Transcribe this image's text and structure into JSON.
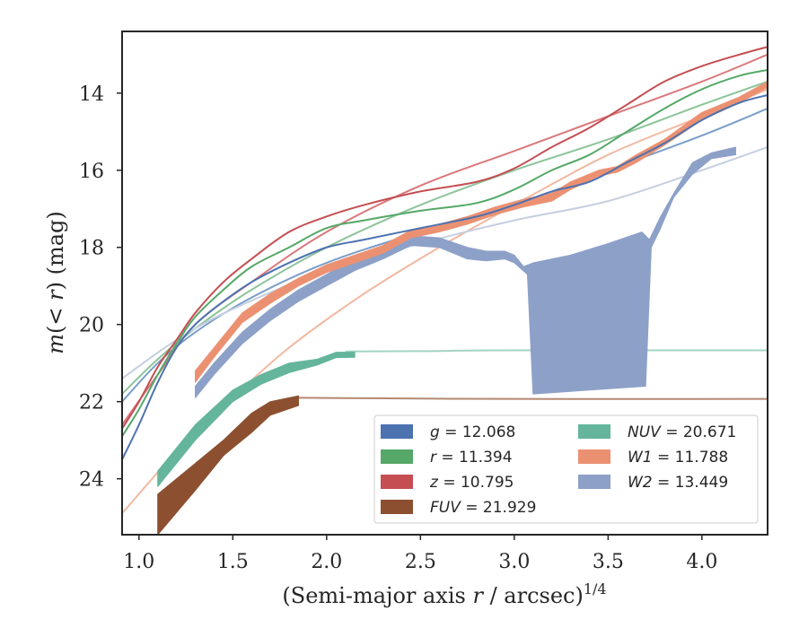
{
  "chart_data": {
    "type": "line",
    "xlabel": "(Semi-major axis r / arcsec)",
    "xlabel_parts": {
      "pre": "(Semi-major axis ",
      "var": "r",
      "post": " / arcsec)",
      "sup": "1/4"
    },
    "ylabel": "m(< r) (mag)",
    "ylabel_parts": {
      "m": "m",
      "open": "(",
      "lt": "< ",
      "r": "r",
      "close": ")",
      "unit": " (mag)"
    },
    "xlim": [
      0.91,
      4.35
    ],
    "ylim": [
      25.45,
      12.4
    ],
    "y_inverted": true,
    "x_ticks": [
      "1.0",
      "1.5",
      "2.0",
      "2.5",
      "3.0",
      "3.5",
      "4.0"
    ],
    "x_tick_values": [
      1.0,
      1.5,
      2.0,
      2.5,
      3.0,
      3.5,
      4.0
    ],
    "y_ticks": [
      "14",
      "16",
      "18",
      "20",
      "22",
      "24"
    ],
    "y_tick_values": [
      14,
      16,
      18,
      20,
      22,
      24
    ],
    "grid": false,
    "legend_placement": "lower-right",
    "legend": [
      {
        "label": "g = 12.068",
        "var": "g",
        "value": "12.068",
        "color": "#4c72b0"
      },
      {
        "label": "r = 11.394",
        "var": "r",
        "value": "11.394",
        "color": "#55a868"
      },
      {
        "label": "z = 10.795",
        "var": "z",
        "value": "10.795",
        "color": "#c44e52"
      },
      {
        "label": "FUV = 21.929",
        "var": "FUV",
        "value": "21.929",
        "color": "#8c5030"
      },
      {
        "label": "NUV = 20.671",
        "var": "NUV",
        "value": "20.671",
        "color": "#64b59b"
      },
      {
        "label": "W1 = 11.788",
        "var": "W1",
        "value": "11.788",
        "color": "#eb9172"
      },
      {
        "label": "W2 = 13.449",
        "var": "W2",
        "value": "13.449",
        "color": "#8da0c8"
      }
    ],
    "models": [
      {
        "band": "g",
        "color": "#7a9ec8",
        "points": [
          [
            0.91,
            22.0
          ],
          [
            1.1,
            21.0
          ],
          [
            1.3,
            20.2
          ],
          [
            1.6,
            19.3
          ],
          [
            2.0,
            18.4
          ],
          [
            2.5,
            17.6
          ],
          [
            3.0,
            16.9
          ],
          [
            3.5,
            16.0
          ],
          [
            4.0,
            15.1
          ],
          [
            4.35,
            14.4
          ]
        ]
      },
      {
        "band": "r",
        "color": "#8cc49a",
        "points": [
          [
            0.91,
            21.8
          ],
          [
            1.1,
            20.9
          ],
          [
            1.3,
            20.1
          ],
          [
            1.6,
            19.1
          ],
          [
            2.0,
            18.0
          ],
          [
            2.5,
            16.9
          ],
          [
            3.0,
            16.0
          ],
          [
            3.5,
            15.2
          ],
          [
            4.0,
            14.3
          ],
          [
            4.35,
            13.7
          ]
        ]
      },
      {
        "band": "z",
        "color": "#d9787b",
        "points": [
          [
            0.91,
            22.6
          ],
          [
            1.1,
            21.3
          ],
          [
            1.3,
            20.0
          ],
          [
            1.6,
            18.9
          ],
          [
            2.0,
            17.6
          ],
          [
            2.5,
            16.4
          ],
          [
            3.0,
            15.5
          ],
          [
            3.5,
            14.6
          ],
          [
            4.0,
            13.7
          ],
          [
            4.35,
            13.0
          ]
        ]
      },
      {
        "band": "FUV",
        "color": "#b58872",
        "points": [
          [
            1.85,
            21.9
          ],
          [
            2.5,
            21.92
          ],
          [
            3.0,
            21.93
          ],
          [
            4.35,
            21.93
          ]
        ]
      },
      {
        "band": "NUV",
        "color": "#a3d3c1",
        "points": [
          [
            2.1,
            20.7
          ],
          [
            2.5,
            20.69
          ],
          [
            3.0,
            20.67
          ],
          [
            4.35,
            20.67
          ]
        ]
      },
      {
        "band": "W1",
        "color": "#f2b8a0",
        "points": [
          [
            0.91,
            24.9
          ],
          [
            1.2,
            23.3
          ],
          [
            1.5,
            21.9
          ],
          [
            1.8,
            20.6
          ],
          [
            2.2,
            19.2
          ],
          [
            2.6,
            18.0
          ],
          [
            3.0,
            16.9
          ],
          [
            3.5,
            15.6
          ],
          [
            4.0,
            14.6
          ],
          [
            4.35,
            13.9
          ]
        ]
      },
      {
        "band": "W2",
        "color": "#c5cfe1",
        "points": [
          [
            0.91,
            21.4
          ],
          [
            1.2,
            20.4
          ],
          [
            1.5,
            19.6
          ],
          [
            2.0,
            18.6
          ],
          [
            2.5,
            17.9
          ],
          [
            3.0,
            17.3
          ],
          [
            3.5,
            16.8
          ],
          [
            4.0,
            16.0
          ],
          [
            4.35,
            15.4
          ]
        ]
      }
    ],
    "observed": [
      {
        "band": "W2",
        "color": "#8da0c8",
        "band_type": "filled",
        "upper": [
          [
            1.3,
            21.6
          ],
          [
            1.4,
            21.0
          ],
          [
            1.55,
            20.2
          ],
          [
            1.7,
            19.6
          ],
          [
            1.85,
            19.1
          ],
          [
            2.0,
            18.7
          ],
          [
            2.15,
            18.3
          ],
          [
            2.3,
            18.0
          ],
          [
            2.45,
            17.7
          ],
          [
            2.6,
            17.75
          ],
          [
            2.75,
            18.0
          ],
          [
            2.85,
            18.1
          ],
          [
            2.95,
            18.1
          ],
          [
            3.0,
            18.2
          ],
          [
            3.05,
            18.5
          ],
          [
            3.1,
            18.4
          ],
          [
            3.3,
            18.2
          ],
          [
            3.5,
            17.9
          ],
          [
            3.68,
            17.6
          ],
          [
            3.72,
            17.8
          ],
          [
            3.78,
            17.2
          ],
          [
            3.85,
            16.6
          ],
          [
            3.95,
            15.8
          ],
          [
            4.05,
            15.55
          ],
          [
            4.18,
            15.4
          ]
        ],
        "lower": [
          [
            4.18,
            15.6
          ],
          [
            4.05,
            15.7
          ],
          [
            3.95,
            16.1
          ],
          [
            3.85,
            16.7
          ],
          [
            3.78,
            17.5
          ],
          [
            3.73,
            18.0
          ],
          [
            3.7,
            21.6
          ],
          [
            3.1,
            21.8
          ],
          [
            3.07,
            18.7
          ],
          [
            3.0,
            18.4
          ],
          [
            2.95,
            18.3
          ],
          [
            2.85,
            18.35
          ],
          [
            2.75,
            18.3
          ],
          [
            2.6,
            18.0
          ],
          [
            2.45,
            17.95
          ],
          [
            2.3,
            18.3
          ],
          [
            2.15,
            18.6
          ],
          [
            2.0,
            19.0
          ],
          [
            1.85,
            19.4
          ],
          [
            1.7,
            19.9
          ],
          [
            1.55,
            20.5
          ],
          [
            1.4,
            21.3
          ],
          [
            1.3,
            21.9
          ]
        ]
      },
      {
        "band": "FUV",
        "color": "#8c5030",
        "band_type": "filled",
        "upper": [
          [
            1.1,
            24.4
          ],
          [
            1.3,
            23.6
          ],
          [
            1.45,
            23.0
          ],
          [
            1.6,
            22.3
          ],
          [
            1.7,
            22.0
          ],
          [
            1.85,
            21.85
          ]
        ],
        "lower": [
          [
            1.85,
            22.1
          ],
          [
            1.7,
            22.35
          ],
          [
            1.6,
            22.8
          ],
          [
            1.45,
            23.4
          ],
          [
            1.3,
            24.3
          ],
          [
            1.1,
            25.45
          ]
        ]
      },
      {
        "band": "NUV",
        "color": "#64b59b",
        "band_type": "filled",
        "upper": [
          [
            1.1,
            23.8
          ],
          [
            1.3,
            22.6
          ],
          [
            1.5,
            21.7
          ],
          [
            1.65,
            21.3
          ],
          [
            1.8,
            21.0
          ],
          [
            1.95,
            20.9
          ],
          [
            2.05,
            20.72
          ],
          [
            2.15,
            20.72
          ]
        ],
        "lower": [
          [
            2.15,
            20.85
          ],
          [
            2.05,
            20.86
          ],
          [
            1.95,
            21.05
          ],
          [
            1.8,
            21.25
          ],
          [
            1.65,
            21.55
          ],
          [
            1.5,
            22.0
          ],
          [
            1.3,
            23.0
          ],
          [
            1.1,
            24.2
          ]
        ]
      },
      {
        "band": "W1",
        "color": "#eb9172",
        "band_type": "filled",
        "upper": [
          [
            1.3,
            21.2
          ],
          [
            1.4,
            20.6
          ],
          [
            1.55,
            19.7
          ],
          [
            1.7,
            19.2
          ],
          [
            1.85,
            18.8
          ],
          [
            2.0,
            18.45
          ],
          [
            2.15,
            18.2
          ],
          [
            2.3,
            17.95
          ],
          [
            2.45,
            17.55
          ],
          [
            2.6,
            17.4
          ],
          [
            2.75,
            17.2
          ],
          [
            2.9,
            16.95
          ],
          [
            3.05,
            16.75
          ],
          [
            3.2,
            16.6
          ],
          [
            3.3,
            16.3
          ],
          [
            3.45,
            16.0
          ],
          [
            3.55,
            15.9
          ],
          [
            3.65,
            15.6
          ],
          [
            3.8,
            15.2
          ],
          [
            4.0,
            14.5
          ],
          [
            4.2,
            14.1
          ],
          [
            4.35,
            13.7
          ]
        ],
        "lower": [
          [
            4.35,
            13.85
          ],
          [
            4.2,
            14.25
          ],
          [
            4.0,
            14.7
          ],
          [
            3.8,
            15.35
          ],
          [
            3.65,
            15.8
          ],
          [
            3.55,
            16.05
          ],
          [
            3.45,
            16.15
          ],
          [
            3.3,
            16.5
          ],
          [
            3.2,
            16.8
          ],
          [
            3.05,
            16.95
          ],
          [
            2.9,
            17.15
          ],
          [
            2.75,
            17.4
          ],
          [
            2.6,
            17.6
          ],
          [
            2.45,
            17.75
          ],
          [
            2.3,
            18.15
          ],
          [
            2.15,
            18.4
          ],
          [
            2.0,
            18.65
          ],
          [
            1.85,
            19.0
          ],
          [
            1.7,
            19.45
          ],
          [
            1.55,
            19.95
          ],
          [
            1.4,
            20.85
          ],
          [
            1.3,
            21.5
          ]
        ]
      },
      {
        "band": "g",
        "color": "#4c72b0",
        "band_type": "line",
        "width": 2,
        "points": [
          [
            0.91,
            23.5
          ],
          [
            1.0,
            22.6
          ],
          [
            1.1,
            21.5
          ],
          [
            1.2,
            20.6
          ],
          [
            1.3,
            20.0
          ],
          [
            1.45,
            19.4
          ],
          [
            1.6,
            18.9
          ],
          [
            1.8,
            18.4
          ],
          [
            2.0,
            18.0
          ],
          [
            2.2,
            17.8
          ],
          [
            2.5,
            17.5
          ],
          [
            2.8,
            17.2
          ],
          [
            3.0,
            16.9
          ],
          [
            3.2,
            16.55
          ],
          [
            3.4,
            16.3
          ],
          [
            3.6,
            15.8
          ],
          [
            3.8,
            15.3
          ],
          [
            4.0,
            14.7
          ],
          [
            4.2,
            14.25
          ],
          [
            4.35,
            14.05
          ]
        ]
      },
      {
        "band": "r",
        "color": "#55a868",
        "band_type": "line",
        "width": 2,
        "points": [
          [
            0.91,
            22.9
          ],
          [
            1.0,
            22.2
          ],
          [
            1.1,
            21.3
          ],
          [
            1.2,
            20.5
          ],
          [
            1.3,
            19.8
          ],
          [
            1.45,
            19.1
          ],
          [
            1.6,
            18.5
          ],
          [
            1.8,
            18.0
          ],
          [
            2.0,
            17.5
          ],
          [
            2.2,
            17.3
          ],
          [
            2.5,
            17.05
          ],
          [
            2.8,
            16.85
          ],
          [
            3.0,
            16.5
          ],
          [
            3.2,
            16.0
          ],
          [
            3.4,
            15.6
          ],
          [
            3.6,
            15.0
          ],
          [
            3.8,
            14.4
          ],
          [
            4.0,
            13.9
          ],
          [
            4.2,
            13.55
          ],
          [
            4.35,
            13.4
          ]
        ]
      },
      {
        "band": "z",
        "color": "#c44e52",
        "band_type": "line",
        "width": 2,
        "points": [
          [
            0.91,
            22.7
          ],
          [
            1.0,
            22.0
          ],
          [
            1.1,
            21.1
          ],
          [
            1.2,
            20.4
          ],
          [
            1.3,
            19.7
          ],
          [
            1.45,
            18.9
          ],
          [
            1.6,
            18.3
          ],
          [
            1.8,
            17.6
          ],
          [
            2.0,
            17.2
          ],
          [
            2.2,
            16.9
          ],
          [
            2.5,
            16.55
          ],
          [
            2.8,
            16.3
          ],
          [
            3.0,
            15.95
          ],
          [
            3.2,
            15.4
          ],
          [
            3.4,
            14.9
          ],
          [
            3.6,
            14.3
          ],
          [
            3.8,
            13.7
          ],
          [
            4.0,
            13.3
          ],
          [
            4.2,
            13.0
          ],
          [
            4.35,
            12.8
          ]
        ]
      }
    ]
  }
}
